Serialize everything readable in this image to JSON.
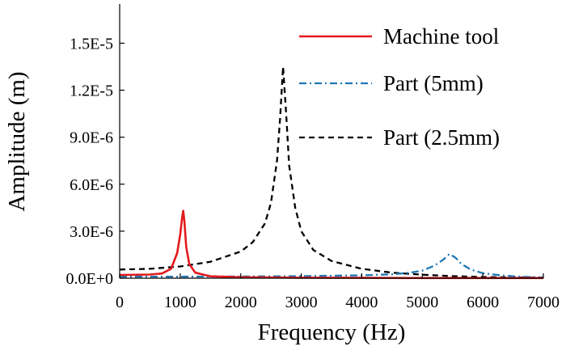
{
  "chart_data": {
    "type": "line",
    "title": "",
    "xlabel": "Frequency (Hz)",
    "ylabel": "Amplitude (m)",
    "xlim": [
      0,
      7000
    ],
    "ylim": [
      0,
      1.75e-05
    ],
    "x_ticks": [
      0,
      1000,
      2000,
      3000,
      4000,
      5000,
      6000,
      7000
    ],
    "x_tick_labels": [
      "0",
      "1000",
      "2000",
      "3000",
      "4000",
      "5000",
      "6000",
      "7000"
    ],
    "y_ticks": [
      0,
      3e-06,
      6e-06,
      9e-06,
      1.2e-05,
      1.5e-05
    ],
    "y_tick_labels": [
      "0.0E+0",
      "3.0E-6",
      "6.0E-6",
      "9.0E-6",
      "1.2E-5",
      "1.5E-5"
    ],
    "grid": false,
    "legend_position": "top-right",
    "series": [
      {
        "name": "Machine tool",
        "color": "#e31a1c",
        "dash": "solid",
        "x": [
          0,
          500,
          700,
          850,
          950,
          1000,
          1030,
          1050,
          1070,
          1100,
          1150,
          1250,
          1500,
          2000,
          3000,
          4000,
          5000,
          6000,
          7000
        ],
        "y": [
          2e-07,
          2.3e-07,
          3e-07,
          6e-07,
          1.6e-06,
          2.8e-06,
          3.8e-06,
          4.3e-06,
          3.6e-06,
          2e-06,
          9e-07,
          3.5e-07,
          1.2e-07,
          6e-08,
          3e-08,
          2e-08,
          1e-08,
          1e-08,
          1e-08
        ]
      },
      {
        "name": "Part (5mm)",
        "color": "#1f77b4",
        "dash": "dashdot",
        "x": [
          0,
          1000,
          2000,
          3000,
          4000,
          4500,
          4800,
          5000,
          5200,
          5350,
          5450,
          5550,
          5650,
          5800,
          6000,
          6300,
          6600,
          7000
        ],
        "y": [
          1e-07,
          1e-07,
          1.1e-07,
          1.3e-07,
          1.8e-07,
          2.5e-07,
          3.5e-07,
          4.8e-07,
          8e-07,
          1.2e-06,
          1.55e-06,
          1.3e-06,
          9e-07,
          5.5e-07,
          3.2e-07,
          1.8e-07,
          1e-07,
          5e-08
        ]
      },
      {
        "name": "Part (2.5mm)",
        "color": "#000000",
        "dash": "dashed",
        "x": [
          0,
          500,
          1000,
          1500,
          2000,
          2200,
          2400,
          2500,
          2600,
          2650,
          2700,
          2750,
          2800,
          2900,
          3000,
          3200,
          3500,
          4000,
          4500,
          5000,
          5500,
          6000,
          6500,
          7000
        ],
        "y": [
          5.5e-07,
          6e-07,
          7.5e-07,
          1.05e-06,
          1.7e-06,
          2.3e-06,
          3.5e-06,
          4.8e-06,
          7.5e-06,
          1.02e-05,
          1.35e-05,
          1.05e-05,
          7.2e-06,
          4.5e-06,
          3e-06,
          1.8e-06,
          1.1e-06,
          6e-07,
          3.5e-07,
          2.2e-07,
          1.3e-07,
          8e-08,
          5e-08,
          3e-08
        ]
      }
    ]
  }
}
